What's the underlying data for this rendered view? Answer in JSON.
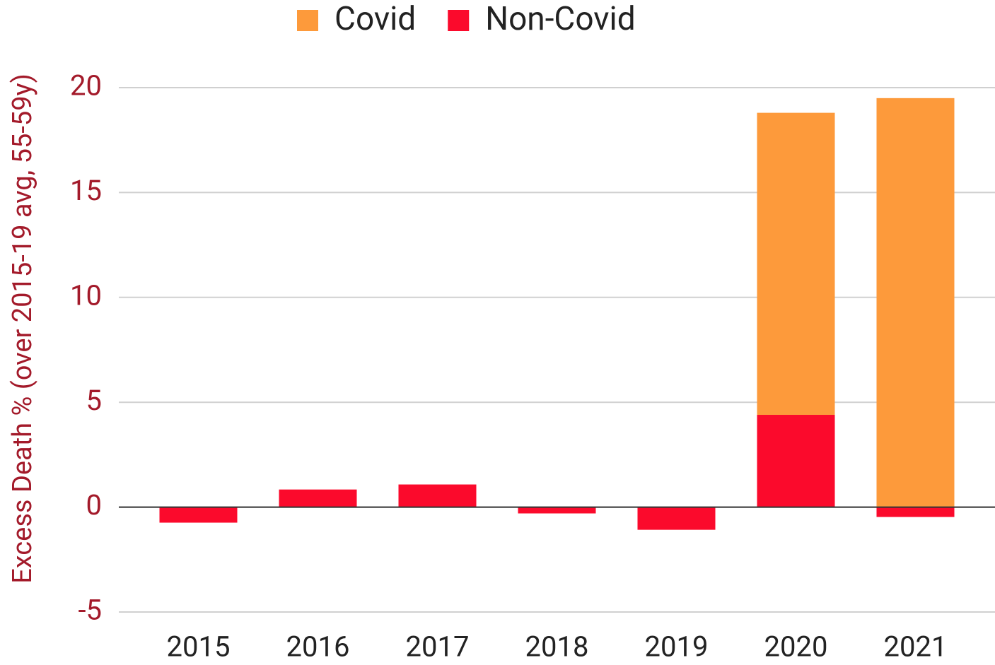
{
  "chart_data": {
    "type": "stacked_bar",
    "y_label": "Excess Death % (over 2015-19 avg, 55-59y)",
    "categories": [
      "2015",
      "2016",
      "2017",
      "2018",
      "2019",
      "2020",
      "2021"
    ],
    "series": [
      {
        "name": "Covid",
        "color": "#fd9a3b",
        "values": [
          0,
          0,
          0,
          0,
          0,
          14.4,
          19.5
        ]
      },
      {
        "name": "Non-Covid",
        "color": "#fb0a2c",
        "values": [
          -0.74,
          0.84,
          1.08,
          -0.3,
          -1.08,
          4.4,
          -0.47
        ]
      }
    ],
    "ylim": [
      -5,
      20
    ],
    "yticks": [
      -5,
      0,
      5,
      10,
      15,
      20
    ],
    "grid": true,
    "legend": "top"
  }
}
